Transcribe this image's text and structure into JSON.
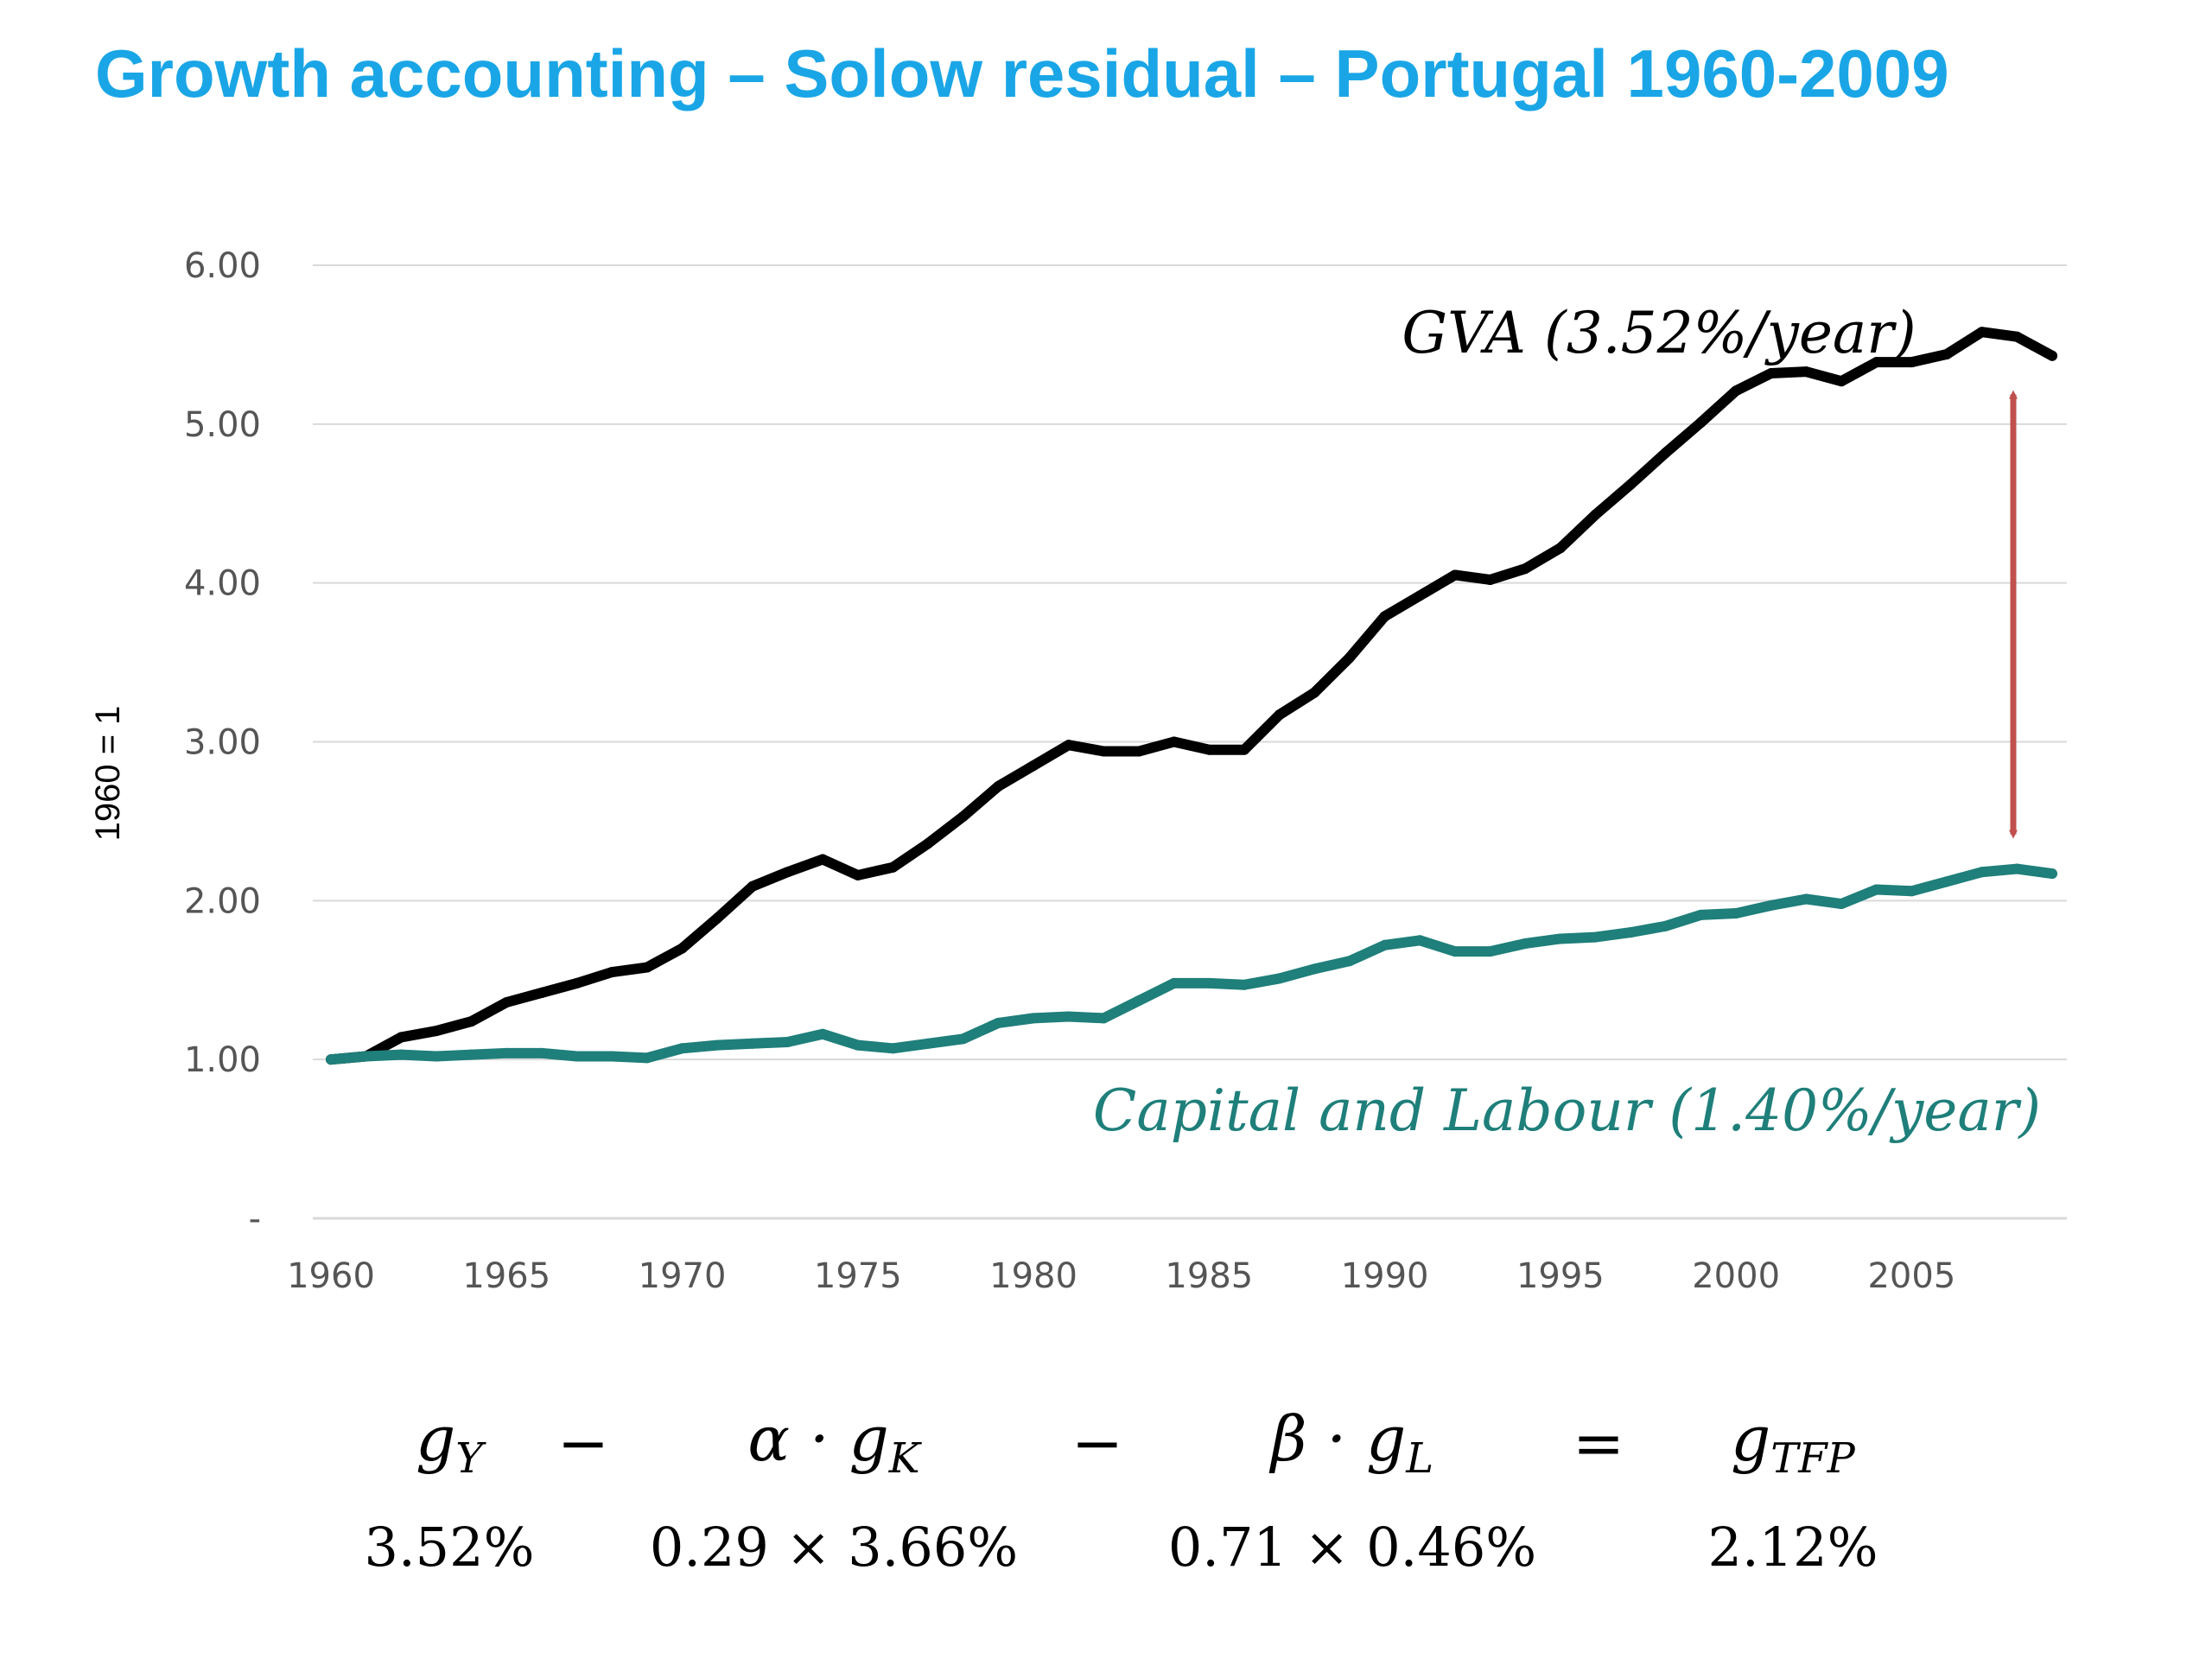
{
  "title": "Growth accounting – Solow residual – Portugal 1960-2009",
  "colors": {
    "title": "#1aa6e6",
    "gva": "#000000",
    "capital_labour": "#1f7f7a",
    "arrow": "#c0504d",
    "grid": "#d9d9d9",
    "tick": "#555555"
  },
  "annotations": {
    "gva": "GVA (3.52%/year)",
    "capital_labour": "Capital and Labour (1.40%/year)"
  },
  "equation": {
    "terms": [
      {
        "symbol": "g",
        "sub": "Y",
        "value": "3.52%"
      },
      {
        "op": "−"
      },
      {
        "symbol": "α · g",
        "sub": "K",
        "value": "0.29 × 3.66%"
      },
      {
        "op": "−"
      },
      {
        "symbol": "β · g",
        "sub": "L",
        "value": "0.71 × 0.46%"
      },
      {
        "op": "="
      },
      {
        "symbol": "g",
        "sub": "TFP",
        "value": "2.12%"
      }
    ]
  },
  "chart_data": {
    "type": "line",
    "title": "Growth accounting – Solow residual – Portugal 1960-2009",
    "ylabel": "1960 = 1",
    "xlabel": "",
    "x": [
      1960,
      1961,
      1962,
      1963,
      1964,
      1965,
      1966,
      1967,
      1968,
      1969,
      1970,
      1971,
      1972,
      1973,
      1974,
      1975,
      1976,
      1977,
      1978,
      1979,
      1980,
      1981,
      1982,
      1983,
      1984,
      1985,
      1986,
      1987,
      1988,
      1989,
      1990,
      1991,
      1992,
      1993,
      1994,
      1995,
      1996,
      1997,
      1998,
      1999,
      2000,
      2001,
      2002,
      2003,
      2004,
      2005,
      2006,
      2007,
      2008,
      2009
    ],
    "xlim": [
      1960,
      2009
    ],
    "ylim": [
      0,
      6
    ],
    "yticks": [
      0,
      1,
      2,
      3,
      4,
      5,
      6
    ],
    "ytick_labels": [
      "-",
      "1.00",
      "2.00",
      "3.00",
      "4.00",
      "5.00",
      "6.00"
    ],
    "xticks": [
      1960,
      1965,
      1970,
      1975,
      1980,
      1985,
      1990,
      1995,
      2000,
      2005
    ],
    "grid": true,
    "series": [
      {
        "key": "gva",
        "values": [
          1.0,
          1.02,
          1.14,
          1.18,
          1.24,
          1.36,
          1.42,
          1.48,
          1.55,
          1.58,
          1.7,
          1.89,
          2.09,
          2.18,
          2.26,
          2.16,
          2.21,
          2.36,
          2.53,
          2.72,
          2.85,
          2.98,
          2.94,
          2.94,
          3.0,
          2.95,
          2.95,
          3.17,
          3.31,
          3.53,
          3.79,
          3.92,
          4.05,
          4.02,
          4.09,
          4.22,
          4.43,
          4.62,
          4.82,
          5.01,
          5.21,
          5.32,
          5.33,
          5.27,
          5.39,
          5.39,
          5.44,
          5.58,
          5.55,
          5.43
        ]
      },
      {
        "key": "capital_labour",
        "values": [
          1.0,
          1.02,
          1.03,
          1.02,
          1.03,
          1.04,
          1.04,
          1.02,
          1.02,
          1.01,
          1.07,
          1.09,
          1.1,
          1.11,
          1.16,
          1.09,
          1.07,
          1.1,
          1.13,
          1.23,
          1.26,
          1.27,
          1.26,
          1.37,
          1.48,
          1.48,
          1.47,
          1.51,
          1.57,
          1.62,
          1.72,
          1.75,
          1.68,
          1.68,
          1.73,
          1.76,
          1.77,
          1.8,
          1.84,
          1.91,
          1.92,
          1.97,
          2.01,
          1.98,
          2.07,
          2.06,
          2.12,
          2.18,
          2.2,
          2.17
        ]
      }
    ]
  }
}
